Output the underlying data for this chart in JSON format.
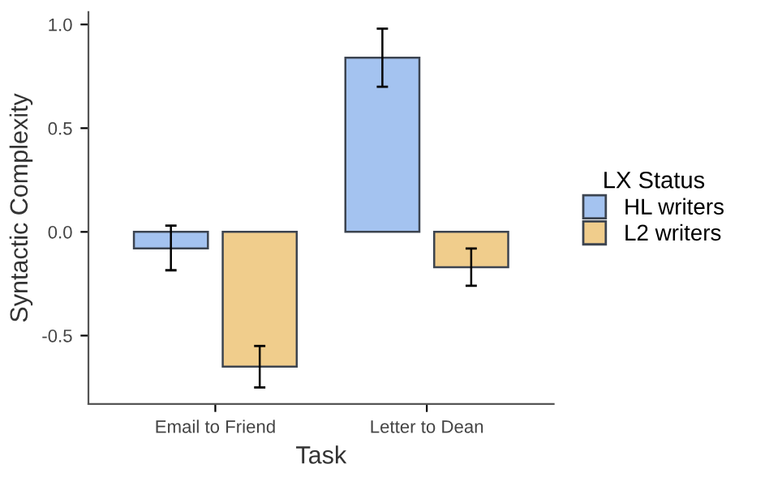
{
  "chart_data": {
    "type": "bar",
    "xlabel": "Task",
    "ylabel": "Syntactic Complexity",
    "legend_title": "LX Status",
    "categories": [
      "Email to Friend",
      "Letter to Dean"
    ],
    "series": [
      {
        "name": "HL writers",
        "color": "#a4c3f0",
        "values": [
          -0.08,
          0.84
        ],
        "errors": [
          [
            -0.185,
            0.03
          ],
          [
            0.7,
            0.98
          ]
        ]
      },
      {
        "name": "L2 writers",
        "color": "#f0cd8c",
        "values": [
          -0.65,
          -0.17
        ],
        "errors": [
          [
            -0.75,
            -0.55
          ],
          [
            -0.26,
            -0.08
          ]
        ]
      }
    ],
    "ylim": [
      -0.83,
      1.06
    ],
    "yticks": [
      {
        "value": -0.5,
        "label": "-0.5"
      },
      {
        "value": 0,
        "label": "0.0"
      },
      0.5,
      {
        "value": 1,
        "label": "1.0"
      }
    ],
    "grid": false,
    "legend": "right"
  }
}
